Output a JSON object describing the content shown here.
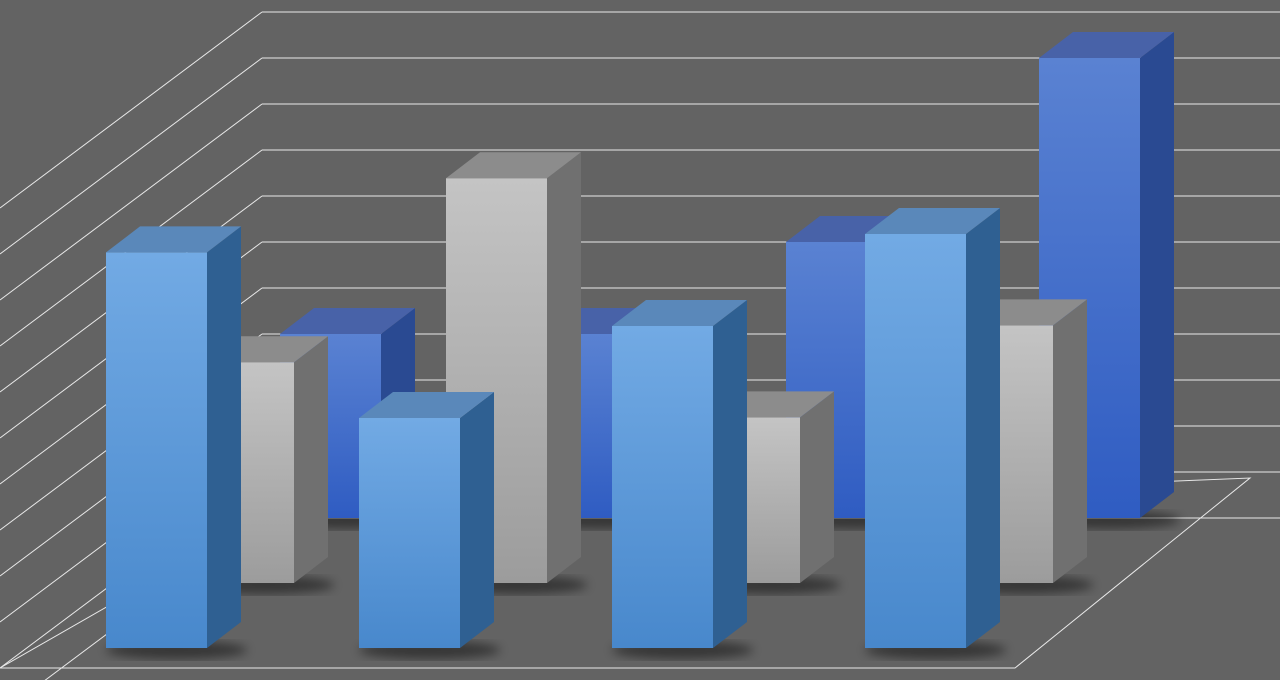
{
  "chart_data": {
    "type": "bar",
    "variant": "3d-grouped-depth",
    "title": "",
    "xlabel": "",
    "ylabel": "",
    "categories": [
      "",
      "",
      "",
      ""
    ],
    "ylim": [
      0,
      11
    ],
    "grid": true,
    "legend": "none",
    "series": [
      {
        "row": "back",
        "color": "#3f66c8",
        "values": [
          4.0,
          4.0,
          6.0,
          10.0
        ]
      },
      {
        "row": "middle",
        "color": "#b4b4b4",
        "values": [
          4.8,
          8.8,
          3.6,
          5.6
        ]
      },
      {
        "row": "front",
        "color": "#5b9be0",
        "values": [
          8.6,
          5.0,
          7.0,
          9.0
        ]
      }
    ],
    "background_color": "#636363",
    "gridline_color": "#e8e8e8"
  }
}
